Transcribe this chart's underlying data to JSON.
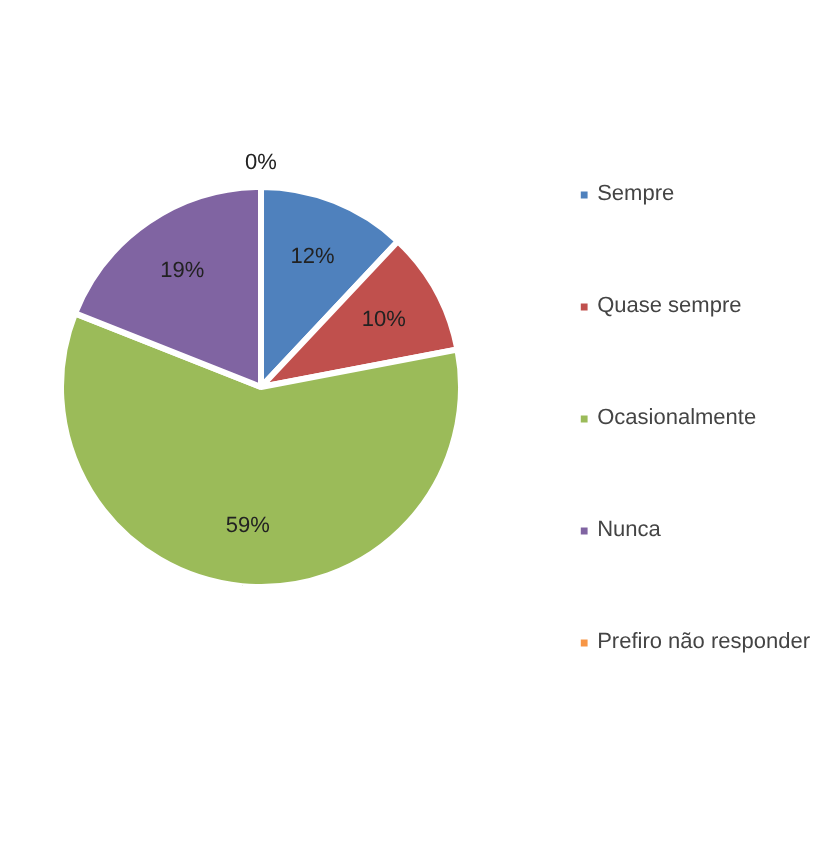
{
  "chart_data": {
    "type": "pie",
    "categories": [
      "Sempre",
      "Quase sempre",
      "Ocasionalmente",
      "Nunca",
      "Prefiro não responder"
    ],
    "values": [
      12,
      10,
      59,
      19,
      0
    ],
    "colors": [
      "#4f81bd",
      "#c0504d",
      "#9bbb59",
      "#8064a2",
      "#f79646"
    ],
    "value_labels": [
      "12%",
      "10%",
      "59%",
      "19%",
      "0%"
    ],
    "legend": "right"
  }
}
